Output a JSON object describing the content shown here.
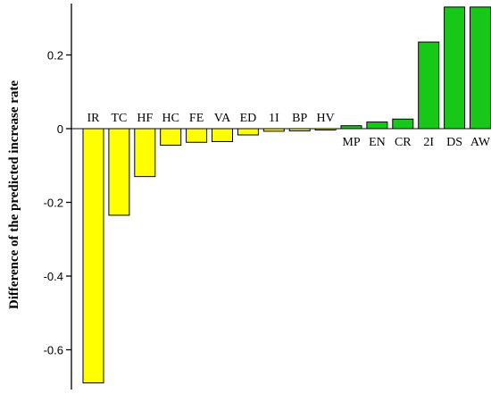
{
  "chart_data": {
    "type": "bar",
    "categories": [
      "IR",
      "TC",
      "HF",
      "HC",
      "FE",
      "VA",
      "ED",
      "1I",
      "BP",
      "HV",
      "MP",
      "EN",
      "CR",
      "2I",
      "DS",
      "AW"
    ],
    "values": [
      -0.69,
      -0.235,
      -0.13,
      -0.045,
      -0.037,
      -0.035,
      -0.017,
      -0.007,
      -0.006,
      -0.002,
      0.008,
      0.018,
      0.026,
      0.235,
      0.33,
      0.33
    ],
    "ylabel": "Difference of the predicted increase rate",
    "xlabel": "",
    "ylim": [
      -0.7,
      0.35
    ],
    "yticks": [
      0.2,
      0,
      -0.2,
      -0.4,
      -0.6
    ],
    "ytick_labels": [
      "0.2",
      "0",
      "-0.2",
      "-0.4",
      "-0.6"
    ],
    "grid": false,
    "colors": {
      "negative": "#ffff00",
      "positive": "#18c818",
      "outline": "#000000"
    }
  }
}
